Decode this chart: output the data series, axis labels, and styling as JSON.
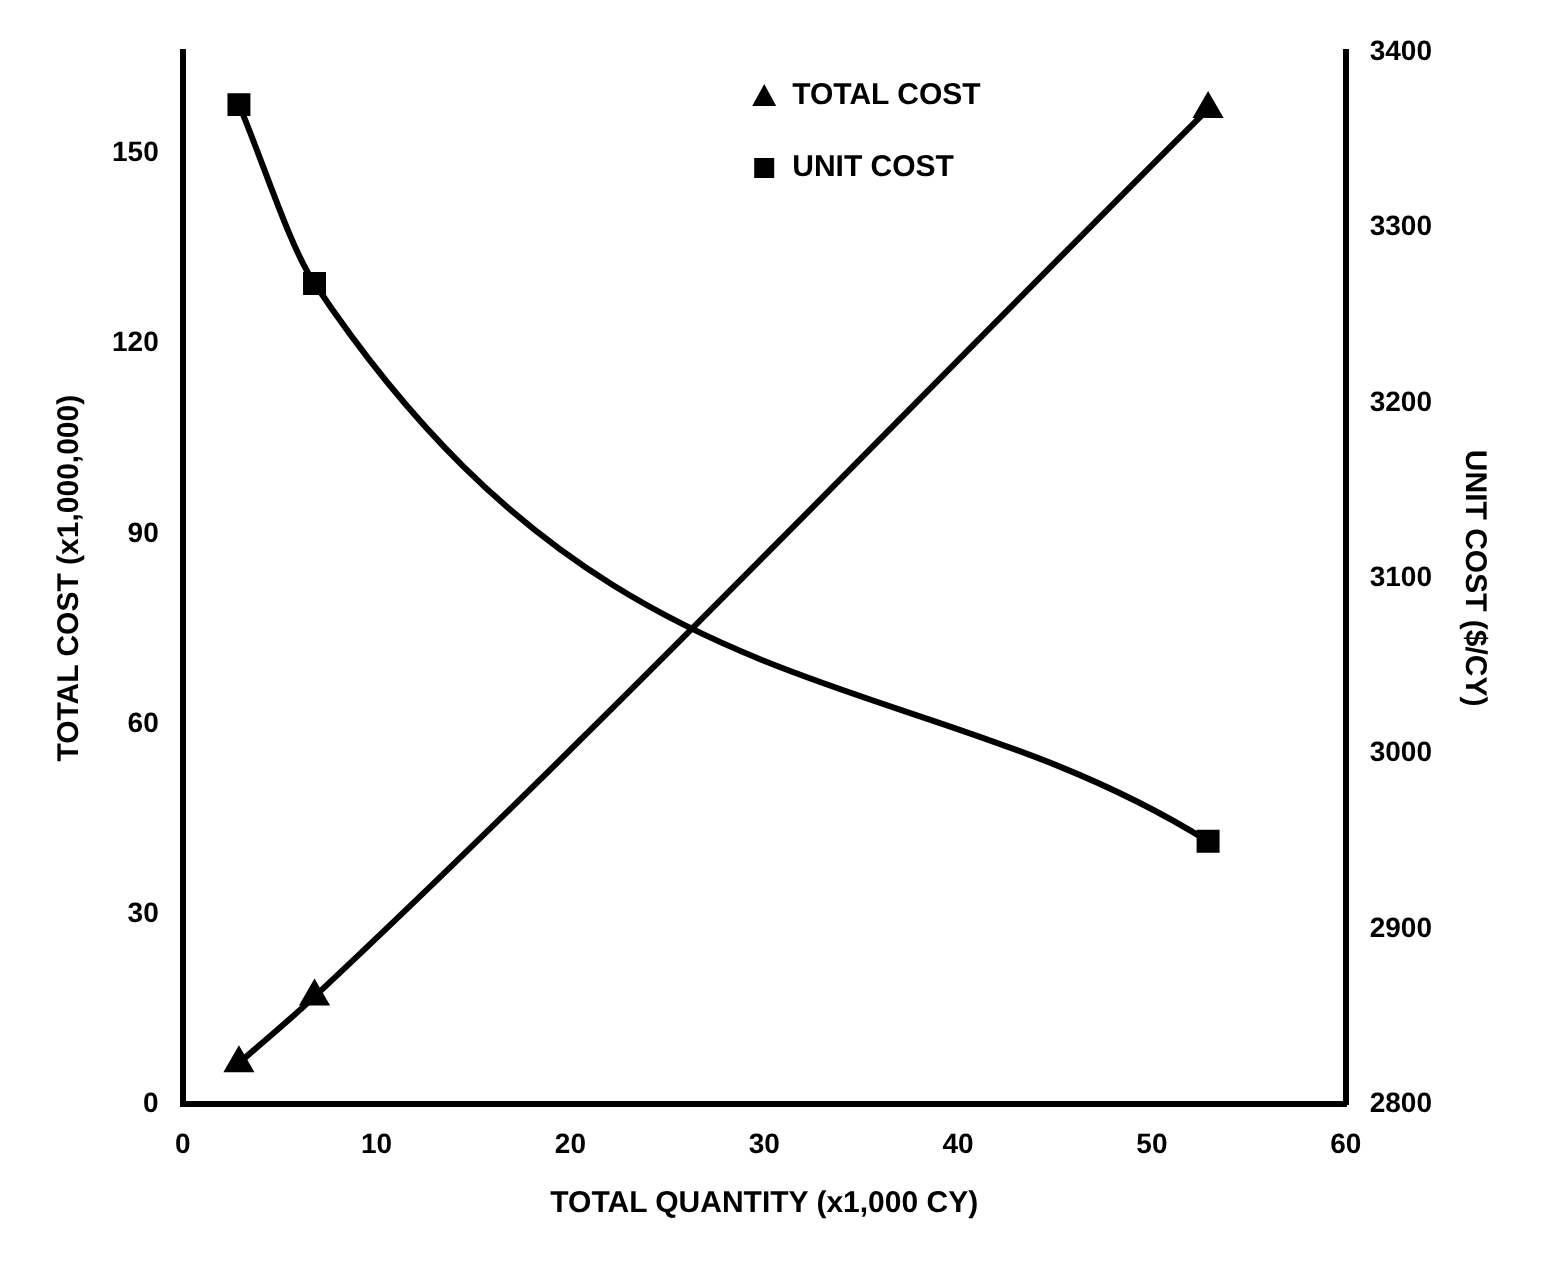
{
  "chart_data": {
    "type": "line",
    "xlabel": "TOTAL QUANTITY (x1,000 CY)",
    "ylabel": "TOTAL COST (x1,000,000)",
    "y2label": "UNIT COST ($/CY)",
    "xlim": [
      0,
      60
    ],
    "xticks": [
      0,
      10,
      20,
      30,
      40,
      50,
      60
    ],
    "ylim": [
      0,
      166
    ],
    "yticks": [
      0,
      30,
      60,
      90,
      120,
      150
    ],
    "y2lim": [
      2800,
      3400
    ],
    "y2ticks": [
      2800,
      2900,
      3000,
      3100,
      3200,
      3300,
      3400
    ],
    "legend": "top",
    "grid": false,
    "line_style": "solid",
    "series": [
      {
        "name": "TOTAL COST",
        "color": "#000000",
        "marker": "triangle",
        "x": [
          2.9,
          6.8,
          52.9
        ],
        "values": [
          6.5,
          17,
          157
        ]
      },
      {
        "name": "UNIT COST",
        "color": "#000000",
        "marker": "square",
        "axis": "y2",
        "x": [
          2.9,
          6.8,
          52.9
        ],
        "values": [
          3370,
          3268,
          2950
        ]
      }
    ]
  }
}
